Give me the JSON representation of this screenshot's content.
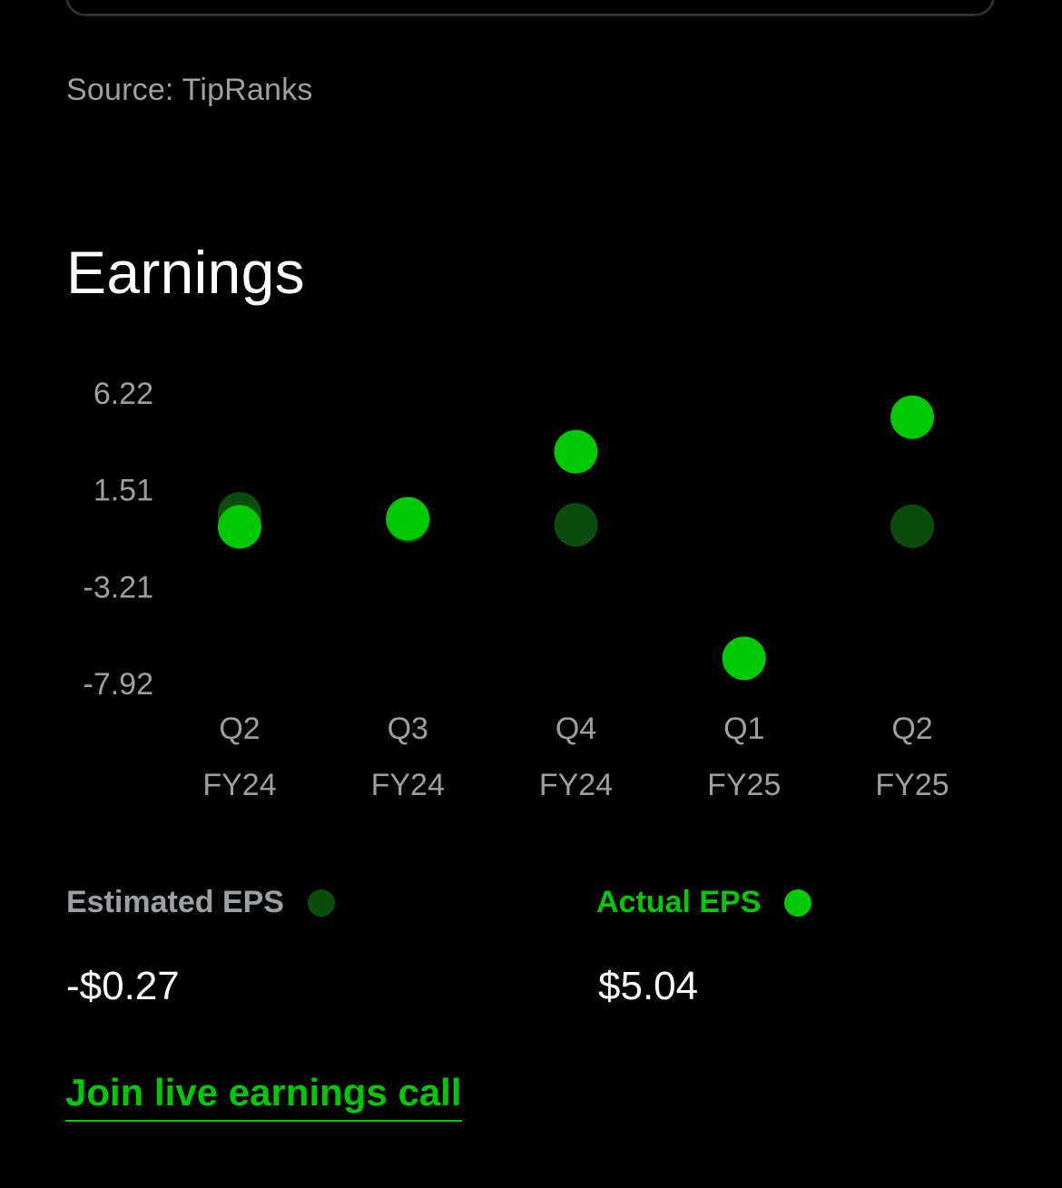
{
  "colors": {
    "background": "#000000",
    "accent": "#00c805",
    "estimate": "#0b4d0d",
    "muted": "#9aa0a3",
    "text": "#ffffff"
  },
  "source_label": "Source: TipRanks",
  "section_title": "Earnings",
  "chart_data": {
    "type": "scatter",
    "y_ticks": [
      "6.22",
      "1.51",
      "-3.21",
      "-7.92"
    ],
    "ylim": [
      -7.92,
      6.22
    ],
    "categories": [
      {
        "quarter": "Q2",
        "fiscal_year": "FY24"
      },
      {
        "quarter": "Q3",
        "fiscal_year": "FY24"
      },
      {
        "quarter": "Q4",
        "fiscal_year": "FY24"
      },
      {
        "quarter": "Q1",
        "fiscal_year": "FY25"
      },
      {
        "quarter": "Q2",
        "fiscal_year": "FY25"
      }
    ],
    "series": [
      {
        "name": "Estimated EPS",
        "color": "#0b4d0d",
        "values": [
          0.34,
          0.0,
          -0.2,
          null,
          -0.27
        ]
      },
      {
        "name": "Actual EPS",
        "color": "#00c805",
        "values": [
          -0.3,
          0.1,
          3.36,
          -6.7,
          5.04
        ]
      }
    ],
    "grid": false,
    "legend": "bottom"
  },
  "legend": {
    "estimated_label": "Estimated EPS",
    "actual_label": "Actual EPS"
  },
  "summary": {
    "estimated_value": "-$0.27",
    "actual_value": "$5.04"
  },
  "cta_label": "Join live earnings call"
}
